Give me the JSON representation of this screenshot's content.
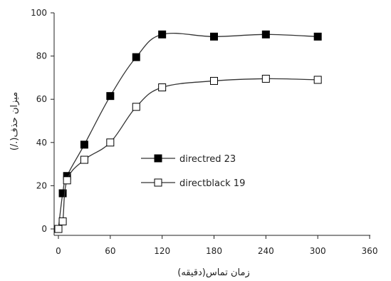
{
  "chart_data": {
    "type": "line",
    "title": "",
    "xlabel": "زمان تماس(دقیقه)",
    "ylabel": "میزان حذف(./)",
    "xlim": [
      0,
      360
    ],
    "ylim": [
      0,
      100
    ],
    "xticks": [
      0,
      60,
      120,
      180,
      240,
      300,
      360
    ],
    "yticks": [
      0,
      20,
      40,
      60,
      80,
      100
    ],
    "grid": false,
    "legend_position": "center",
    "series": [
      {
        "name": "directred 23",
        "marker": "filled-square",
        "x": [
          0,
          5,
          10,
          30,
          60,
          90,
          120,
          180,
          240,
          300
        ],
        "y": [
          0,
          16.5,
          24.5,
          39,
          61.5,
          79.5,
          90,
          89,
          90,
          89
        ]
      },
      {
        "name": "directblack 19",
        "marker": "open-square",
        "x": [
          0,
          5,
          10,
          30,
          60,
          90,
          120,
          180,
          240,
          300
        ],
        "y": [
          0,
          3.5,
          22.5,
          32,
          40,
          56.5,
          65.5,
          68.5,
          69.5,
          69
        ]
      }
    ]
  }
}
